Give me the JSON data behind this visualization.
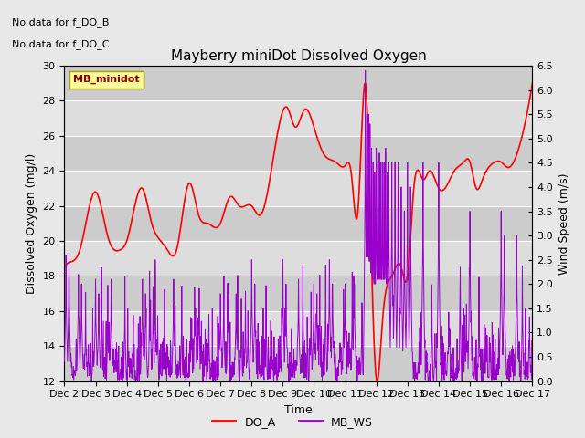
{
  "title": "Mayberry miniDot Dissolved Oxygen",
  "ylabel_left": "Dissolved Oxygen (mg/l)",
  "ylabel_right": "Wind Speed (m/s)",
  "xlabel": "Time",
  "ylim_left": [
    12,
    30
  ],
  "ylim_right": [
    0,
    6.5
  ],
  "yticks_left": [
    12,
    14,
    16,
    18,
    20,
    22,
    24,
    26,
    28,
    30
  ],
  "yticks_right": [
    0.0,
    0.5,
    1.0,
    1.5,
    2.0,
    2.5,
    3.0,
    3.5,
    4.0,
    4.5,
    5.0,
    5.5,
    6.0,
    6.5
  ],
  "do_color": "#FF0000",
  "ws_color": "#9900CC",
  "annotation1": "No data for f_DO_B",
  "annotation2": "No data for f_DO_C",
  "legend_box_label": "MB_minidot",
  "legend_do": "DO_A",
  "legend_ws": "MB_WS",
  "background_color": "#E8E8E8",
  "plot_bg_color": "#CCCCCC",
  "band_colors": [
    "#CCCCCC",
    "#DDDDDD"
  ],
  "figsize": [
    6.4,
    4.8
  ],
  "dpi": 100
}
